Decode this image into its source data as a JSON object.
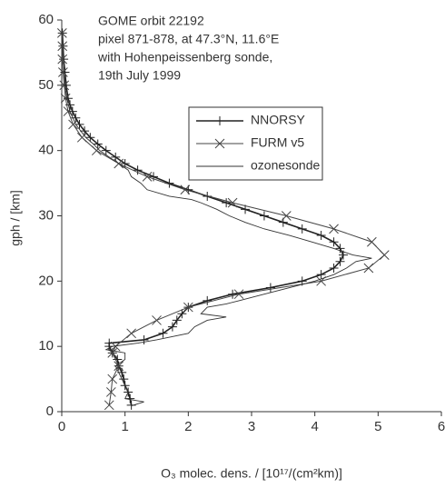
{
  "chart_data": {
    "type": "line",
    "annotation_lines": [
      "GOME orbit 22192",
      "pixel 871-878, at 47.3°N, 11.6°E",
      "with Hohenpeissenberg sonde,",
      "19th July 1999"
    ],
    "x_label": "O₃ molec. dens. / [10¹⁷/(cm²km)]",
    "y_label": "gph / [km]",
    "xlim": [
      0,
      6
    ],
    "xticks": [
      0,
      1,
      2,
      3,
      4,
      5,
      6
    ],
    "ylim": [
      0,
      60
    ],
    "yticks": [
      0,
      10,
      20,
      30,
      40,
      50,
      60
    ],
    "legend": "upper right",
    "series": [
      {
        "name": "NNORSY",
        "color": "#222222",
        "marker": "plus",
        "width": 1.6,
        "x": [
          1.1,
          1.08,
          1.05,
          1.0,
          0.98,
          0.95,
          0.9,
          0.88,
          0.8,
          0.75,
          0.75,
          1.3,
          1.6,
          1.75,
          1.82,
          1.9,
          2.0,
          2.3,
          2.7,
          3.3,
          3.8,
          4.1,
          4.3,
          4.4,
          4.45,
          4.4,
          4.3,
          4.1,
          3.8,
          3.5,
          3.2,
          2.9,
          2.6,
          2.3,
          2.0,
          1.7,
          1.45,
          1.2,
          1.0,
          0.85,
          0.7,
          0.57,
          0.45,
          0.36,
          0.28,
          0.22,
          0.17,
          0.13,
          0.1,
          0.07,
          0.05,
          0.03,
          0.02,
          0.01
        ],
        "y": [
          1,
          2,
          3,
          4,
          5,
          6,
          7,
          8,
          9,
          10,
          10.5,
          11,
          12,
          13,
          14,
          15,
          16,
          17,
          18,
          19,
          20,
          21,
          22,
          23,
          24,
          25,
          26,
          27,
          28,
          29,
          30,
          31,
          32,
          33,
          34,
          35,
          36,
          37,
          38,
          39,
          40,
          41,
          42,
          43,
          44,
          45,
          46,
          47,
          48,
          50,
          52,
          54,
          56,
          58
        ]
      },
      {
        "name": "FURM v5",
        "color": "#444444",
        "marker": "x",
        "width": 1,
        "x": [
          0.75,
          0.78,
          0.8,
          0.9,
          0.8,
          0.85,
          1.1,
          1.5,
          2.0,
          2.8,
          4.1,
          4.85,
          5.1,
          4.9,
          4.3,
          3.55,
          2.7,
          1.95,
          1.35,
          0.9,
          0.55,
          0.32,
          0.18,
          0.1,
          0.06,
          0.04,
          0.02,
          0.01,
          0.01,
          0.005
        ],
        "y": [
          1,
          3,
          5,
          7,
          9,
          10,
          12,
          14,
          16,
          18,
          20,
          22,
          24,
          26,
          28,
          30,
          32,
          34,
          36,
          38,
          40,
          42,
          44,
          46,
          48,
          50,
          52,
          54,
          56,
          58
        ]
      },
      {
        "name": "ozonesonde",
        "color": "#333333",
        "marker": null,
        "width": 0.9,
        "x": [
          1.1,
          1.3,
          1.0,
          1.05,
          1.0,
          0.95,
          0.9,
          0.85,
          1.0,
          1.0,
          0.7,
          0.8,
          1.2,
          1.5,
          2.0,
          2.1,
          2.3,
          2.6,
          2.2,
          2.3,
          2.6,
          2.8,
          3.2,
          3.6,
          4.0,
          4.3,
          4.5,
          4.65,
          4.9,
          4.6,
          4.3,
          3.95,
          3.6,
          3.2,
          2.9,
          2.65,
          2.45,
          2.2,
          2.05,
          1.7,
          1.35,
          1.25,
          1.1,
          1.05,
          0.9,
          0.75,
          0.6,
          0.5,
          0.38,
          0.22,
          0.13,
          0.08,
          0.05,
          0.03,
          0.01
        ],
        "y": [
          0.9,
          1.5,
          2,
          3,
          4,
          5,
          6,
          7,
          8,
          9,
          9.5,
          10,
          10.5,
          11,
          12,
          13,
          14,
          14.5,
          15,
          16,
          16.5,
          17,
          18,
          19,
          20,
          21,
          22,
          23,
          23.5,
          24,
          25,
          26,
          27,
          28,
          29,
          30,
          31,
          32,
          32.5,
          33,
          34,
          35,
          36,
          37,
          38,
          39,
          40,
          41,
          42,
          44,
          46,
          48,
          50,
          54,
          58
        ]
      }
    ]
  }
}
